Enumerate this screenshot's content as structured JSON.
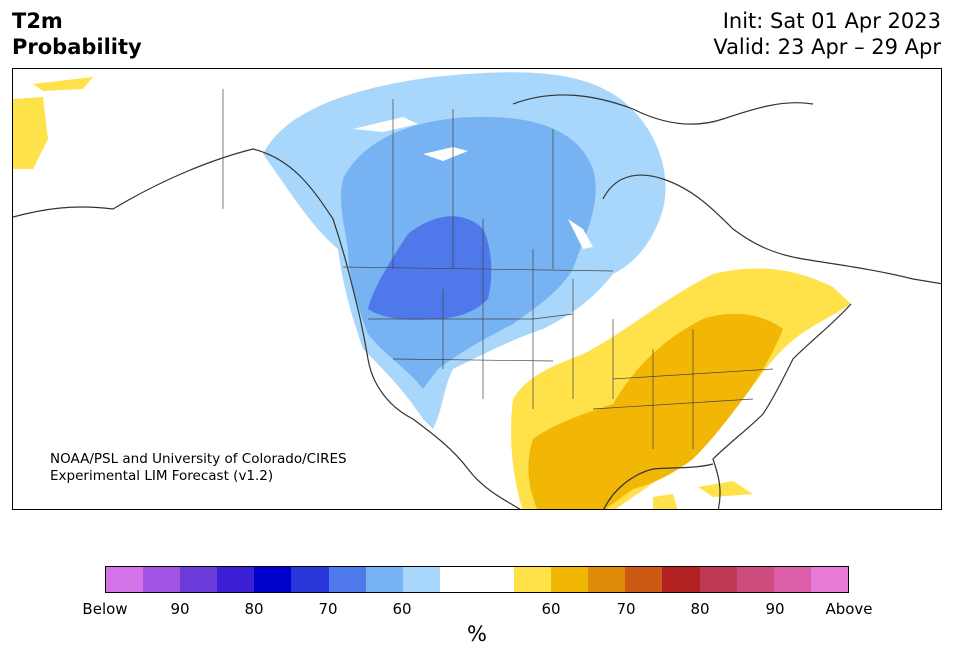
{
  "title": {
    "variable": "T2m",
    "subtitle": "Probability",
    "init": "Init: Sat 01 Apr 2023",
    "valid": "Valid: 23 Apr – 29 Apr"
  },
  "credit": {
    "line1": "NOAA/PSL and University of Colorado/CIRES",
    "line2": "Experimental LIM Forecast (v1.2)"
  },
  "colorbar": {
    "unit": "%",
    "colors": [
      "#d472e8",
      "#9f55e2",
      "#6a3bd9",
      "#3a1fd4",
      "#0000cc",
      "#2636d8",
      "#4f78ea",
      "#77b2f2",
      "#a8d7fb",
      "#ffffff",
      "#ffffff",
      "#ffe14a",
      "#f2b705",
      "#e08c0b",
      "#cc5a15",
      "#b22222",
      "#c03954",
      "#cc4d7d",
      "#dc5ea8",
      "#e87ad8"
    ],
    "ticks": [
      {
        "label": "Below"
      },
      {
        "label": "90"
      },
      {
        "label": "80"
      },
      {
        "label": "70"
      },
      {
        "label": "60"
      },
      {
        "label": "60"
      },
      {
        "label": "70"
      },
      {
        "label": "80"
      },
      {
        "label": "90"
      },
      {
        "label": "Above"
      }
    ]
  },
  "legend_categories": {
    "cold_light": "#a8d7fb",
    "cold_mid": "#77b2f2",
    "cold_strong": "#4f78ea",
    "warm_light": "#ffe14a",
    "warm_mid": "#f2b705"
  }
}
